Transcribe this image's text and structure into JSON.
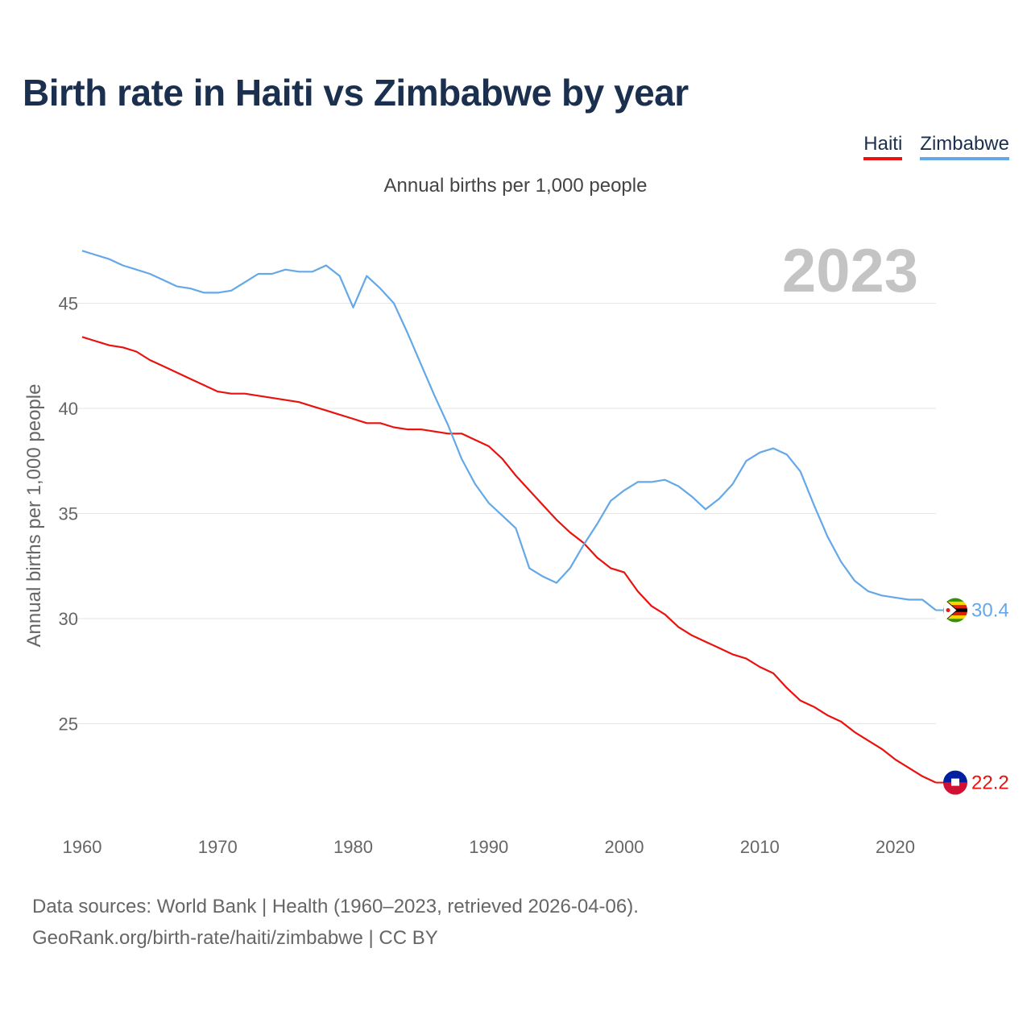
{
  "title": "Birth rate in Haiti vs Zimbabwe by year",
  "subtitle": "Annual births per 1,000 people",
  "legend": [
    {
      "name": "Haiti",
      "color": "#e8120f"
    },
    {
      "name": "Zimbabwe",
      "color": "#64a8e8"
    }
  ],
  "footer": {
    "line1": "Data sources: World Bank | Health (1960–2023, retrieved 2026-04-06).",
    "line2": "GeoRank.org/birth-rate/haiti/zimbabwe | CC BY"
  },
  "chart_data": {
    "type": "line",
    "title": "Birth rate in Haiti vs Zimbabwe by year",
    "ylabel": "Annual births per 1,000 people",
    "xlabel": "",
    "xlim": [
      1960,
      2023
    ],
    "ylim": [
      21,
      48
    ],
    "xticks": [
      1960,
      1970,
      1980,
      1990,
      2000,
      2010,
      2020
    ],
    "yticks": [
      25,
      30,
      35,
      40,
      45
    ],
    "grid": true,
    "legend_position": "top-right",
    "year_annotation": "2023",
    "x": [
      1960,
      1961,
      1962,
      1963,
      1964,
      1965,
      1966,
      1967,
      1968,
      1969,
      1970,
      1971,
      1972,
      1973,
      1974,
      1975,
      1976,
      1977,
      1978,
      1979,
      1980,
      1981,
      1982,
      1983,
      1984,
      1985,
      1986,
      1987,
      1988,
      1989,
      1990,
      1991,
      1992,
      1993,
      1994,
      1995,
      1996,
      1997,
      1998,
      1999,
      2000,
      2001,
      2002,
      2003,
      2004,
      2005,
      2006,
      2007,
      2008,
      2009,
      2010,
      2011,
      2012,
      2013,
      2014,
      2015,
      2016,
      2017,
      2018,
      2019,
      2020,
      2021,
      2022,
      2023
    ],
    "series": [
      {
        "name": "Haiti",
        "color": "#e8120f",
        "end_label": "22.2",
        "values": [
          43.4,
          43.2,
          43.0,
          42.9,
          42.7,
          42.3,
          42.0,
          41.7,
          41.4,
          41.1,
          40.8,
          40.7,
          40.7,
          40.6,
          40.5,
          40.4,
          40.3,
          40.1,
          39.9,
          39.7,
          39.5,
          39.3,
          39.3,
          39.1,
          39.0,
          39.0,
          38.9,
          38.8,
          38.8,
          38.5,
          38.2,
          37.6,
          36.8,
          36.1,
          35.4,
          34.7,
          34.1,
          33.6,
          32.9,
          32.4,
          32.2,
          31.3,
          30.6,
          30.2,
          29.6,
          29.2,
          28.9,
          28.6,
          28.3,
          28.1,
          27.7,
          27.4,
          26.7,
          26.1,
          25.8,
          25.4,
          25.1,
          24.6,
          24.2,
          23.8,
          23.3,
          22.9,
          22.5,
          22.2
        ]
      },
      {
        "name": "Zimbabwe",
        "color": "#64a8e8",
        "end_label": "30.4",
        "values": [
          47.5,
          47.3,
          47.1,
          46.8,
          46.6,
          46.4,
          46.1,
          45.8,
          45.7,
          45.5,
          45.5,
          45.6,
          46.0,
          46.4,
          46.4,
          46.6,
          46.5,
          46.5,
          46.8,
          46.3,
          44.8,
          46.3,
          45.7,
          45.0,
          43.6,
          42.1,
          40.6,
          39.2,
          37.6,
          36.4,
          35.5,
          34.9,
          34.3,
          32.4,
          32.0,
          31.7,
          32.4,
          33.5,
          34.5,
          35.6,
          36.1,
          36.5,
          36.5,
          36.6,
          36.3,
          35.8,
          35.2,
          35.7,
          36.4,
          37.5,
          37.9,
          38.1,
          37.8,
          37.0,
          35.4,
          33.9,
          32.7,
          31.8,
          31.3,
          31.1,
          31.0,
          30.9,
          30.9,
          30.4
        ]
      }
    ]
  }
}
